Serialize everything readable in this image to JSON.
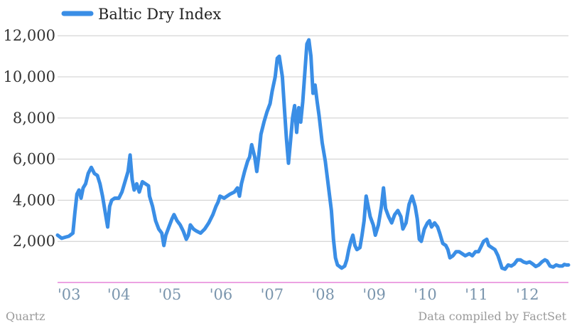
{
  "chart_data": {
    "type": "line",
    "title": "",
    "xlabel": "",
    "ylabel": "",
    "legend": {
      "position": "top-left",
      "entries": [
        "Baltic Dry Index"
      ]
    },
    "series": [
      {
        "name": "Baltic Dry Index",
        "color": "#3a8ee6",
        "points": [
          [
            2003.0,
            2300
          ],
          [
            2003.08,
            2150
          ],
          [
            2003.15,
            2200
          ],
          [
            2003.22,
            2250
          ],
          [
            2003.3,
            2400
          ],
          [
            2003.34,
            3400
          ],
          [
            2003.38,
            4300
          ],
          [
            2003.42,
            4500
          ],
          [
            2003.46,
            4100
          ],
          [
            2003.5,
            4600
          ],
          [
            2003.55,
            4800
          ],
          [
            2003.6,
            5300
          ],
          [
            2003.66,
            5600
          ],
          [
            2003.72,
            5300
          ],
          [
            2003.78,
            5200
          ],
          [
            2003.83,
            4800
          ],
          [
            2003.88,
            4200
          ],
          [
            2003.94,
            3300
          ],
          [
            2003.98,
            2700
          ],
          [
            2004.02,
            3700
          ],
          [
            2004.06,
            4000
          ],
          [
            2004.12,
            4100
          ],
          [
            2004.2,
            4100
          ],
          [
            2004.26,
            4400
          ],
          [
            2004.32,
            4900
          ],
          [
            2004.38,
            5400
          ],
          [
            2004.42,
            6200
          ],
          [
            2004.46,
            5000
          ],
          [
            2004.5,
            4500
          ],
          [
            2004.55,
            4800
          ],
          [
            2004.6,
            4400
          ],
          [
            2004.66,
            4900
          ],
          [
            2004.72,
            4800
          ],
          [
            2004.78,
            4700
          ],
          [
            2004.8,
            4200
          ],
          [
            2004.86,
            3700
          ],
          [
            2004.92,
            3000
          ],
          [
            2004.98,
            2600
          ],
          [
            2005.04,
            2400
          ],
          [
            2005.08,
            1800
          ],
          [
            2005.12,
            2300
          ],
          [
            2005.18,
            2700
          ],
          [
            2005.24,
            3100
          ],
          [
            2005.28,
            3300
          ],
          [
            2005.34,
            3000
          ],
          [
            2005.4,
            2800
          ],
          [
            2005.46,
            2500
          ],
          [
            2005.52,
            2100
          ],
          [
            2005.56,
            2300
          ],
          [
            2005.6,
            2800
          ],
          [
            2005.66,
            2600
          ],
          [
            2005.72,
            2500
          ],
          [
            2005.8,
            2400
          ],
          [
            2005.88,
            2600
          ],
          [
            2005.96,
            2900
          ],
          [
            2006.04,
            3300
          ],
          [
            2006.1,
            3700
          ],
          [
            2006.14,
            3900
          ],
          [
            2006.18,
            4200
          ],
          [
            2006.26,
            4100
          ],
          [
            2006.32,
            4200
          ],
          [
            2006.38,
            4300
          ],
          [
            2006.46,
            4400
          ],
          [
            2006.52,
            4600
          ],
          [
            2006.56,
            4200
          ],
          [
            2006.6,
            4800
          ],
          [
            2006.66,
            5400
          ],
          [
            2006.72,
            5900
          ],
          [
            2006.76,
            6100
          ],
          [
            2006.8,
            6700
          ],
          [
            2006.86,
            6100
          ],
          [
            2006.9,
            5400
          ],
          [
            2006.94,
            6200
          ],
          [
            2006.98,
            7200
          ],
          [
            2007.04,
            7800
          ],
          [
            2007.1,
            8300
          ],
          [
            2007.16,
            8700
          ],
          [
            2007.2,
            9300
          ],
          [
            2007.26,
            10000
          ],
          [
            2007.3,
            10900
          ],
          [
            2007.34,
            11000
          ],
          [
            2007.4,
            10000
          ],
          [
            2007.44,
            8500
          ],
          [
            2007.48,
            7000
          ],
          [
            2007.52,
            5800
          ],
          [
            2007.56,
            6900
          ],
          [
            2007.6,
            8000
          ],
          [
            2007.64,
            8600
          ],
          [
            2007.68,
            7300
          ],
          [
            2007.72,
            8500
          ],
          [
            2007.76,
            7800
          ],
          [
            2007.8,
            8800
          ],
          [
            2007.84,
            10200
          ],
          [
            2007.88,
            11600
          ],
          [
            2007.92,
            11800
          ],
          [
            2007.96,
            11000
          ],
          [
            2008.0,
            9200
          ],
          [
            2008.04,
            9600
          ],
          [
            2008.08,
            8800
          ],
          [
            2008.12,
            8100
          ],
          [
            2008.18,
            6800
          ],
          [
            2008.24,
            5900
          ],
          [
            2008.3,
            4700
          ],
          [
            2008.36,
            3500
          ],
          [
            2008.4,
            2100
          ],
          [
            2008.44,
            1200
          ],
          [
            2008.48,
            850
          ],
          [
            2008.56,
            700
          ],
          [
            2008.62,
            800
          ],
          [
            2008.66,
            1100
          ],
          [
            2008.7,
            1600
          ],
          [
            2008.74,
            2000
          ],
          [
            2008.78,
            2300
          ],
          [
            2008.82,
            1800
          ],
          [
            2008.86,
            1600
          ],
          [
            2008.92,
            1700
          ],
          [
            2008.96,
            2300
          ],
          [
            2009.0,
            3000
          ],
          [
            2009.04,
            4200
          ],
          [
            2009.08,
            3700
          ],
          [
            2009.12,
            3200
          ],
          [
            2009.18,
            2800
          ],
          [
            2009.22,
            2300
          ],
          [
            2009.28,
            2800
          ],
          [
            2009.34,
            3700
          ],
          [
            2009.38,
            4600
          ],
          [
            2009.42,
            3600
          ],
          [
            2009.48,
            3200
          ],
          [
            2009.54,
            2900
          ],
          [
            2009.6,
            3300
          ],
          [
            2009.66,
            3500
          ],
          [
            2009.72,
            3200
          ],
          [
            2009.76,
            2600
          ],
          [
            2009.82,
            2900
          ],
          [
            2009.88,
            3800
          ],
          [
            2009.94,
            4200
          ],
          [
            2010.0,
            3700
          ],
          [
            2010.04,
            3100
          ],
          [
            2010.08,
            2100
          ],
          [
            2010.12,
            2000
          ],
          [
            2010.18,
            2600
          ],
          [
            2010.24,
            2900
          ],
          [
            2010.28,
            3000
          ],
          [
            2010.32,
            2700
          ],
          [
            2010.38,
            2900
          ],
          [
            2010.44,
            2700
          ],
          [
            2010.48,
            2400
          ],
          [
            2010.54,
            1900
          ],
          [
            2010.6,
            1800
          ],
          [
            2010.64,
            1600
          ],
          [
            2010.68,
            1200
          ],
          [
            2010.74,
            1300
          ],
          [
            2010.8,
            1500
          ],
          [
            2010.86,
            1500
          ],
          [
            2010.92,
            1400
          ],
          [
            2010.98,
            1300
          ],
          [
            2011.06,
            1400
          ],
          [
            2011.12,
            1300
          ],
          [
            2011.18,
            1500
          ],
          [
            2011.24,
            1500
          ],
          [
            2011.3,
            1800
          ],
          [
            2011.34,
            2000
          ],
          [
            2011.4,
            2100
          ],
          [
            2011.44,
            1800
          ],
          [
            2011.5,
            1700
          ],
          [
            2011.56,
            1600
          ],
          [
            2011.62,
            1300
          ],
          [
            2011.66,
            1000
          ],
          [
            2011.7,
            700
          ],
          [
            2011.76,
            650
          ],
          [
            2011.82,
            850
          ],
          [
            2011.88,
            800
          ],
          [
            2011.94,
            900
          ],
          [
            2012.0,
            1100
          ],
          [
            2012.06,
            1100
          ],
          [
            2012.12,
            1000
          ],
          [
            2012.18,
            950
          ],
          [
            2012.24,
            1000
          ],
          [
            2012.3,
            900
          ],
          [
            2012.36,
            780
          ],
          [
            2012.42,
            850
          ],
          [
            2012.48,
            1000
          ],
          [
            2012.54,
            1100
          ],
          [
            2012.58,
            1050
          ],
          [
            2012.64,
            800
          ],
          [
            2012.7,
            750
          ],
          [
            2012.76,
            850
          ],
          [
            2012.82,
            800
          ],
          [
            2012.88,
            800
          ],
          [
            2012.92,
            880
          ],
          [
            2012.96,
            850
          ],
          [
            2013.0,
            850
          ]
        ]
      }
    ],
    "y_axis": {
      "range": [
        0,
        12700
      ],
      "ticks": [
        2000,
        4000,
        6000,
        8000,
        10000,
        12000
      ],
      "tick_labels": [
        "2,000",
        "4,000",
        "6,000",
        "8,000",
        "10,000",
        "12,000"
      ],
      "grid": true
    },
    "x_axis": {
      "range": [
        2003.0,
        2013.0
      ],
      "ticks": [
        2003,
        2004,
        2005,
        2006,
        2007,
        2008,
        2009,
        2010,
        2011,
        2012
      ],
      "tick_labels": [
        "'03",
        "'04",
        "'05",
        "'06",
        "'07",
        "'08",
        "'09",
        "'10",
        "'11",
        "'12"
      ],
      "baseline_color": "#e06bd0"
    },
    "colors": {
      "gridline": "#cccccc",
      "tick_label_x": "#7a95ad",
      "tick_label_y": "#333333"
    }
  },
  "footer": {
    "source_left": "Quartz",
    "source_right": "Data compiled by FactSet"
  }
}
